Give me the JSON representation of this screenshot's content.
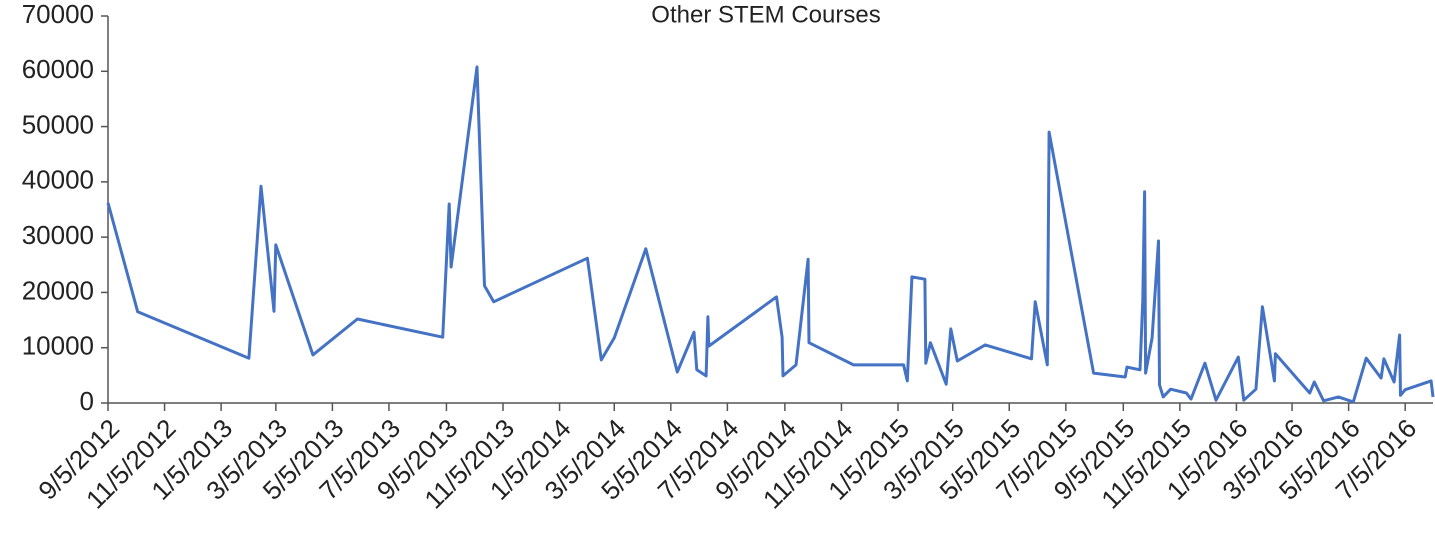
{
  "chart_data": {
    "type": "line",
    "title": "Other STEM Courses",
    "x": [
      "9/5/2012",
      "10/7/2012",
      "2/4/2013",
      "2/17/2013",
      "3/3/2013",
      "3/5/2013",
      "4/14/2013",
      "6/1/2013",
      "9/1/2013",
      "9/8/2013",
      "9/10/2013",
      "10/8/2013",
      "10/16/2013",
      "10/26/2013",
      "2/4/2014",
      "2/19/2014",
      "3/5/2014",
      "4/8/2014",
      "5/12/2014",
      "5/30/2014",
      "6/2/2014",
      "6/12/2014",
      "6/14/2014",
      "6/15/2014",
      "8/27/2014",
      "9/2/2014",
      "9/3/2014",
      "9/17/2014",
      "9/30/2014",
      "10/1/2014",
      "11/18/2014",
      "1/11/2015",
      "1/15/2015",
      "1/20/2015",
      "2/3/2015",
      "2/4/2015",
      "2/9/2015",
      "2/26/2015",
      "3/3/2015",
      "3/10/2015",
      "4/9/2015",
      "5/29/2015",
      "6/2/2015",
      "6/15/2015",
      "6/17/2015",
      "8/4/2015",
      "9/7/2015",
      "9/9/2015",
      "9/23/2015",
      "9/26/2015",
      "9/28/2015",
      "9/29/2015",
      "10/6/2015",
      "10/13/2015",
      "10/14/2015",
      "10/18/2015",
      "10/26/2015",
      "11/12/2015",
      "11/17/2015",
      "12/2/2015",
      "12/14/2015",
      "1/7/2016",
      "1/13/2016",
      "1/26/2016",
      "2/2/2016",
      "2/15/2016",
      "2/16/2016",
      "3/24/2016",
      "3/29/2016",
      "4/8/2016",
      "4/24/2016",
      "5/10/2016",
      "5/24/2016",
      "6/9/2016",
      "6/12/2016",
      "6/23/2016",
      "6/29/2016",
      "6/30/2016",
      "7/5/2016",
      "8/2/2016",
      "8/4/2016"
    ],
    "series": [
      {
        "name": "Other STEM Courses",
        "color": "#4472c4",
        "values": [
          36200,
          16500,
          8100,
          39200,
          16600,
          28600,
          8700,
          15200,
          11900,
          36000,
          24600,
          60800,
          21200,
          18300,
          26200,
          7800,
          11800,
          27900,
          5600,
          12800,
          6000,
          4900,
          15600,
          10300,
          19200,
          11900,
          4900,
          6900,
          26000,
          10900,
          6900,
          6900,
          4000,
          22800,
          22400,
          7200,
          10900,
          3400,
          13400,
          7600,
          10500,
          8000,
          18300,
          6900,
          49000,
          5400,
          4700,
          6500,
          6000,
          18600,
          38200,
          5400,
          11800,
          29300,
          3300,
          1100,
          2500,
          1800,
          700,
          7200,
          500,
          8300,
          500,
          2500,
          17400,
          4000,
          8900,
          1800,
          3800,
          400,
          1100,
          200,
          8100,
          4500,
          8000,
          3800,
          12300,
          1400,
          2400,
          4000,
          1100
        ]
      }
    ],
    "xlim": [
      "9/5/2012",
      "8/4/2016"
    ],
    "xticks": [
      "9/5/2012",
      "11/5/2012",
      "1/5/2013",
      "3/5/2013",
      "5/5/2013",
      "7/5/2013",
      "9/5/2013",
      "11/5/2013",
      "1/5/2014",
      "3/5/2014",
      "5/5/2014",
      "7/5/2014",
      "9/5/2014",
      "11/5/2014",
      "1/5/2015",
      "3/5/2015",
      "5/5/2015",
      "7/5/2015",
      "9/5/2015",
      "11/5/2015",
      "1/5/2016",
      "3/5/2016",
      "5/5/2016",
      "7/5/2016"
    ],
    "ylim": [
      0,
      70000
    ],
    "yticks": [
      0,
      10000,
      20000,
      30000,
      40000,
      50000,
      60000,
      70000
    ]
  }
}
